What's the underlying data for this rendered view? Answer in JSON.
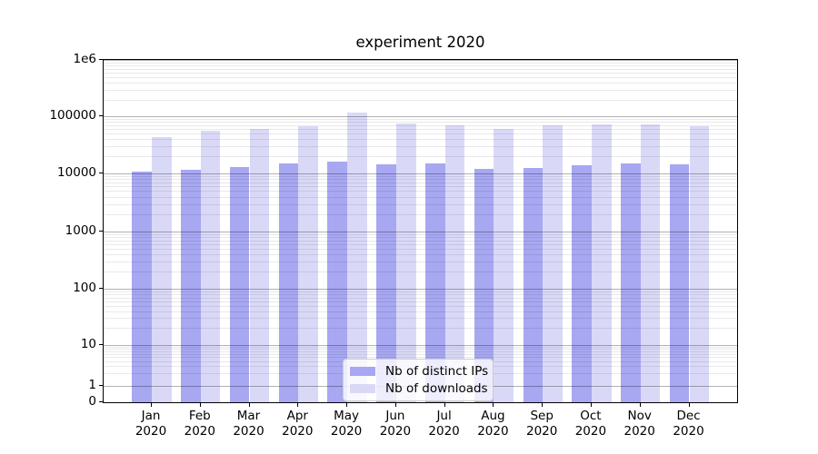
{
  "chart_data": {
    "type": "bar",
    "title": "experiment 2020",
    "categories": [
      "Jan",
      "Feb",
      "Mar",
      "Apr",
      "May",
      "Jun",
      "Jul",
      "Aug",
      "Sep",
      "Oct",
      "Nov",
      "Dec"
    ],
    "year_label": "2020",
    "series": [
      {
        "name": "Nb of distinct IPs",
        "color": "#a7a7f2",
        "values": [
          10900,
          11800,
          13100,
          14800,
          16100,
          14700,
          15000,
          11900,
          12600,
          13900,
          15100,
          14600
        ]
      },
      {
        "name": "Nb of downloads",
        "color": "#d9d9f7",
        "values": [
          43000,
          56000,
          61000,
          68000,
          115000,
          74000,
          69000,
          61000,
          71000,
          72500,
          73000,
          66500
        ]
      }
    ],
    "yscale": "symlog",
    "ylim": [
      0,
      1000000
    ],
    "ytick_values": [
      0,
      1,
      10,
      100,
      1000,
      10000,
      100000,
      1000000
    ],
    "ytick_labels": [
      "0",
      "1",
      "10",
      "100",
      "1000",
      "10000",
      "100000",
      "1e6"
    ],
    "grid": "horizontal, major and minor",
    "legend_position": "lower center"
  }
}
